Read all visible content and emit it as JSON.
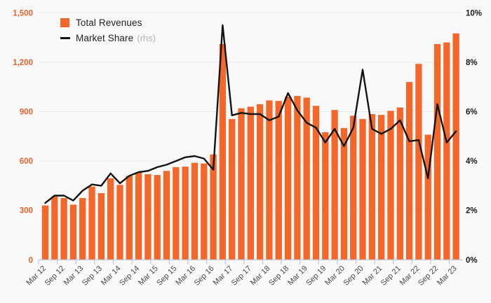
{
  "legend": {
    "revenues_label": "Total Revenues",
    "market_share_label": "Market Share",
    "market_share_suffix": "(rhs)"
  },
  "colors": {
    "bar": "#f4672a",
    "line": "#141414",
    "left_axis_text": "#e8622d",
    "right_axis_text": "#1a1a1a",
    "x_axis_text": "#4a4a4a",
    "gridline": "#e9e9e9",
    "axis_line": "#c3cbe0",
    "background": "#f9f9f9",
    "legend_text": "#222222",
    "legend_muted": "#b3b3b3"
  },
  "chart_data": {
    "type": "combo",
    "title": "",
    "grid": true,
    "legend_position": "top-left",
    "categories": [
      "Mar 12",
      "Jun 12",
      "Sep 12",
      "Dec 12",
      "Mar 13",
      "Jun 13",
      "Sep 13",
      "Dec 13",
      "Mar 14",
      "Jun 14",
      "Sep 14",
      "Dec 14",
      "Mar 15",
      "Jun 15",
      "Sep 15",
      "Dec 15",
      "Mar 16",
      "Jun 16",
      "Sep 16",
      "Dec 16",
      "Mar 17",
      "Jun 17",
      "Sep 17",
      "Dec 17",
      "Mar 18",
      "Jun 18",
      "Sep 18",
      "Dec 18",
      "Mar 19",
      "Jun 19",
      "Sep 19",
      "Dec 19",
      "Mar 20",
      "Jun 20",
      "Sep 20",
      "Dec 20",
      "Mar 21",
      "Jun 21",
      "Sep 21",
      "Dec 21",
      "Mar 22",
      "Jun 22",
      "Sep 22",
      "Dec 22",
      "Mar 23"
    ],
    "x_tick_labels": [
      "Mar 12",
      "Sep 12",
      "Mar 13",
      "Sep 13",
      "Mar 14",
      "Sep 14",
      "Mar 15",
      "Sep 15",
      "Mar 16",
      "Sep 16",
      "Mar 17",
      "Sep 17",
      "Mar 18",
      "Sep 18",
      "Mar 19",
      "Sep 19",
      "Mar 20",
      "Sep 20",
      "Mar 21",
      "Sep 21",
      "Mar 22",
      "Sep 22",
      "Mar 23"
    ],
    "series": [
      {
        "name": "Total Revenues",
        "type": "bar",
        "axis": "left",
        "values": [
          330,
          385,
          375,
          335,
          375,
          445,
          405,
          495,
          455,
          510,
          530,
          520,
          515,
          540,
          563,
          566,
          589,
          585,
          640,
          1310,
          855,
          920,
          930,
          945,
          968,
          965,
          990,
          995,
          985,
          935,
          775,
          910,
          800,
          875,
          855,
          885,
          880,
          905,
          925,
          1080,
          1190,
          760,
          1310,
          1320,
          1375
        ]
      },
      {
        "name": "Market Share (rhs)",
        "type": "line",
        "axis": "right",
        "values": [
          2.3,
          2.6,
          2.6,
          2.4,
          2.8,
          3.05,
          3.0,
          3.5,
          3.1,
          3.4,
          3.55,
          3.6,
          3.75,
          3.85,
          4.0,
          4.15,
          4.2,
          4.1,
          3.65,
          9.5,
          5.85,
          5.95,
          5.9,
          5.9,
          5.65,
          5.8,
          6.75,
          6.05,
          5.55,
          5.35,
          4.75,
          5.3,
          4.6,
          5.35,
          7.7,
          5.3,
          5.1,
          5.3,
          5.65,
          4.8,
          4.85,
          3.3,
          6.3,
          4.75,
          5.2
        ]
      }
    ],
    "left_axis": {
      "label": "",
      "tick_labels": [
        "0",
        "300",
        "600",
        "900",
        "1,200",
        "1,500"
      ],
      "tick_values": [
        0,
        300,
        600,
        900,
        1200,
        1500
      ],
      "min": 0,
      "max": 1500
    },
    "right_axis": {
      "label": "",
      "tick_labels": [
        "0%",
        "2%",
        "4%",
        "6%",
        "8%",
        "10%"
      ],
      "tick_values": [
        0,
        2,
        4,
        6,
        8,
        10
      ],
      "min": 0,
      "max": 10
    }
  }
}
